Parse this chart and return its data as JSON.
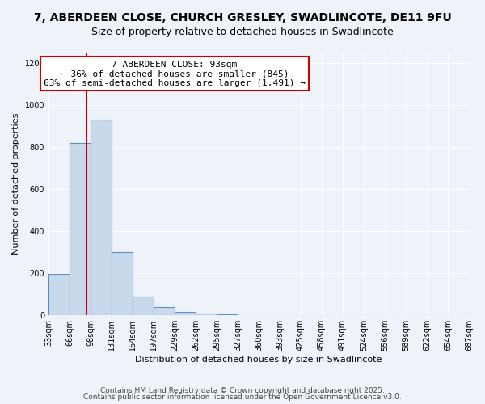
{
  "title": "7, ABERDEEN CLOSE, CHURCH GRESLEY, SWADLINCOTE, DE11 9FU",
  "subtitle": "Size of property relative to detached houses in Swadlincote",
  "xlabel": "Distribution of detached houses by size in Swadlincote",
  "ylabel": "Number of detached properties",
  "bin_edges": [
    33,
    66,
    99,
    132,
    165,
    198,
    231,
    264,
    297,
    330,
    363,
    396,
    429,
    462,
    495,
    528,
    561,
    594,
    627,
    660,
    693
  ],
  "bin_labels": [
    "33sqm",
    "66sqm",
    "98sqm",
    "131sqm",
    "164sqm",
    "197sqm",
    "229sqm",
    "262sqm",
    "295sqm",
    "327sqm",
    "360sqm",
    "393sqm",
    "425sqm",
    "458sqm",
    "491sqm",
    "524sqm",
    "556sqm",
    "589sqm",
    "622sqm",
    "654sqm",
    "687sqm"
  ],
  "counts": [
    195,
    820,
    930,
    300,
    90,
    38,
    18,
    10,
    5,
    0,
    0,
    0,
    0,
    0,
    0,
    0,
    0,
    0,
    0,
    0
  ],
  "bar_color": "#c9d9ec",
  "bar_edge_color": "#5a8fc3",
  "property_line_x": 93,
  "property_line_color": "#cc0000",
  "annotation_title": "7 ABERDEEN CLOSE: 93sqm",
  "annotation_line1": "← 36% of detached houses are smaller (845)",
  "annotation_line2": "63% of semi-detached houses are larger (1,491) →",
  "annotation_box_color": "#ffffff",
  "annotation_box_edge_color": "#cc0000",
  "ylim": [
    0,
    1250
  ],
  "yticks": [
    0,
    200,
    400,
    600,
    800,
    1000,
    1200
  ],
  "background_color": "#eef2f9",
  "footer1": "Contains HM Land Registry data © Crown copyright and database right 2025.",
  "footer2": "Contains public sector information licensed under the Open Government Licence v3.0.",
  "title_fontsize": 10,
  "subtitle_fontsize": 9,
  "label_fontsize": 8,
  "tick_fontsize": 7,
  "annotation_fontsize": 8,
  "footer_fontsize": 6.5
}
